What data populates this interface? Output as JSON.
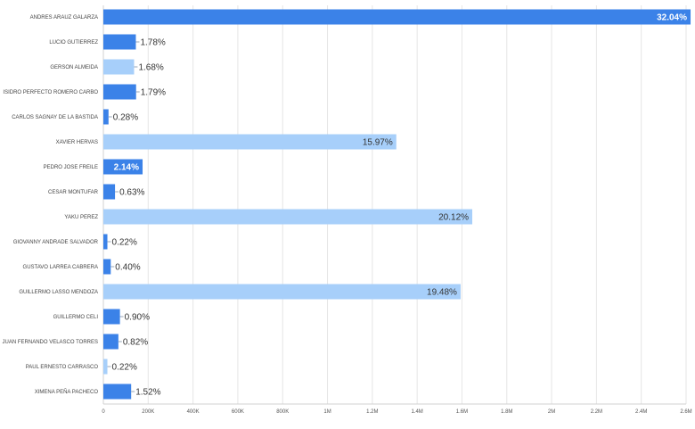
{
  "chart_data": {
    "type": "bar",
    "orientation": "horizontal",
    "grid": true,
    "xlim": [
      0,
      2600000
    ],
    "x_ticks": [
      {
        "value": 0,
        "label": "0"
      },
      {
        "value": 200000,
        "label": "200K"
      },
      {
        "value": 400000,
        "label": "400K"
      },
      {
        "value": 600000,
        "label": "600K"
      },
      {
        "value": 800000,
        "label": "800K"
      },
      {
        "value": 1000000,
        "label": "1M"
      },
      {
        "value": 1200000,
        "label": "1.2M"
      },
      {
        "value": 1400000,
        "label": "1.4M"
      },
      {
        "value": 1600000,
        "label": "1.6M"
      },
      {
        "value": 1800000,
        "label": "1.8M"
      },
      {
        "value": 2000000,
        "label": "2M"
      },
      {
        "value": 2200000,
        "label": "2.2M"
      },
      {
        "value": 2400000,
        "label": "2.4M"
      },
      {
        "value": 2600000,
        "label": "2.6M"
      }
    ],
    "colors": {
      "dark": "#3b82e8",
      "light": "#a7cffa",
      "grid": "#e6e6e6"
    },
    "bars": [
      {
        "category": "ANDRES ARAUZ GALARZA",
        "value": 2620000,
        "label": "32.04%",
        "tone": "dark"
      },
      {
        "category": "LUCIO GUTIERREZ",
        "value": 145000,
        "label": "1.78%",
        "tone": "dark"
      },
      {
        "category": "GERSON ALMEIDA",
        "value": 137000,
        "label": "1.68%",
        "tone": "light"
      },
      {
        "category": "ISIDRO PERFECTO ROMERO CARBO",
        "value": 146000,
        "label": "1.79%",
        "tone": "dark"
      },
      {
        "category": "CARLOS SAGNAY DE LA BASTIDA",
        "value": 23000,
        "label": "0.28%",
        "tone": "dark"
      },
      {
        "category": "XAVIER HERVAS",
        "value": 1307000,
        "label": "15.97%",
        "tone": "light"
      },
      {
        "category": "PEDRO JOSE FREILE",
        "value": 175000,
        "label": "2.14%",
        "tone": "dark"
      },
      {
        "category": "CESAR MONTUFAR",
        "value": 52000,
        "label": "0.63%",
        "tone": "dark"
      },
      {
        "category": "YAKU PEREZ",
        "value": 1646000,
        "label": "20.12%",
        "tone": "light"
      },
      {
        "category": "GIOVANNY ANDRADE SALVADOR",
        "value": 18000,
        "label": "0.22%",
        "tone": "dark"
      },
      {
        "category": "GUSTAVO LARREA CABRERA",
        "value": 33000,
        "label": "0.40%",
        "tone": "dark"
      },
      {
        "category": "GUILLERMO LASSO MENDOZA",
        "value": 1594000,
        "label": "19.48%",
        "tone": "light"
      },
      {
        "category": "GUILLERMO CELI",
        "value": 74000,
        "label": "0.90%",
        "tone": "dark"
      },
      {
        "category": "JUAN FERNANDO VELASCO TORRES",
        "value": 67000,
        "label": "0.82%",
        "tone": "dark"
      },
      {
        "category": "PAUL ERNESTO CARRASCO",
        "value": 18000,
        "label": "0.22%",
        "tone": "light"
      },
      {
        "category": "XIMENA PEÑA PACHECO",
        "value": 124000,
        "label": "1.52%",
        "tone": "dark"
      }
    ]
  }
}
